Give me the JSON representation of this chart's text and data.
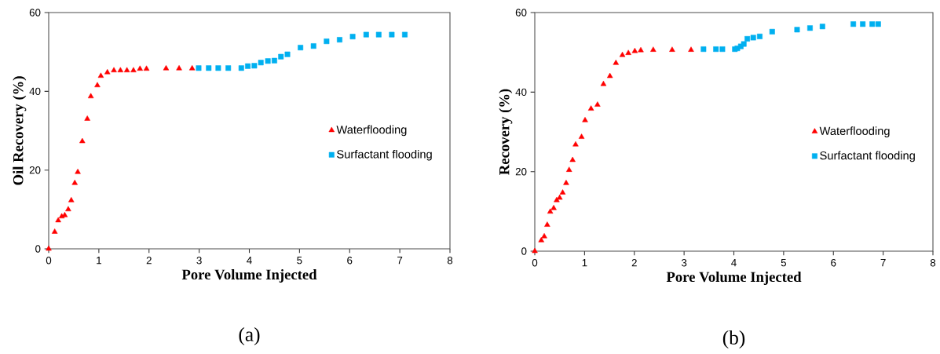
{
  "chart_data": [
    {
      "type": "scatter",
      "xlabel": "Pore Volume Injected",
      "ylabel": "Oil Recovery (%)",
      "xlim": [
        0,
        8
      ],
      "ylim": [
        0,
        60
      ],
      "xticks": [
        0,
        1,
        2,
        3,
        4,
        5,
        6,
        7,
        8
      ],
      "yticks": [
        0,
        20,
        40,
        60
      ],
      "legend": "right",
      "grid": false,
      "annotations": [
        "(a)"
      ],
      "series": [
        {
          "name": "Waterflooding",
          "color": "#ff0000",
          "marker": "triangle",
          "x": [
            0,
            0.12,
            0.19,
            0.26,
            0.32,
            0.39,
            0.45,
            0.52,
            0.58,
            0.67,
            0.77,
            0.84,
            0.97,
            1.04,
            1.17,
            1.3,
            1.43,
            1.56,
            1.69,
            1.82,
            1.95,
            2.34,
            2.6,
            2.86
          ],
          "values": [
            0,
            4.3,
            7.2,
            8.2,
            8.5,
            10,
            12.3,
            16.7,
            19.5,
            27.3,
            33,
            38.7,
            41.5,
            43.9,
            44.8,
            45.3,
            45.3,
            45.3,
            45.3,
            45.7,
            45.7,
            45.8,
            45.8,
            45.8
          ]
        },
        {
          "name": "Surfactant flooding",
          "color": "#00b0f0",
          "marker": "square",
          "x": [
            2.99,
            3.19,
            3.38,
            3.58,
            3.84,
            3.97,
            4.1,
            4.23,
            4.37,
            4.5,
            4.63,
            4.76,
            5.02,
            5.28,
            5.54,
            5.8,
            6.06,
            6.33,
            6.58,
            6.84,
            7.1
          ],
          "values": [
            45.9,
            45.9,
            45.9,
            45.9,
            45.9,
            46.4,
            46.5,
            47.3,
            47.7,
            47.8,
            48.8,
            49.4,
            51.1,
            51.5,
            52.7,
            53.1,
            53.9,
            54.4,
            54.4,
            54.4,
            54.4
          ]
        }
      ]
    },
    {
      "type": "scatter",
      "xlabel": "Pore Volume Injected",
      "ylabel": "Recovery (%)",
      "xlim": [
        0,
        8
      ],
      "ylim": [
        0,
        60
      ],
      "xticks": [
        0,
        1,
        2,
        3,
        4,
        5,
        6,
        7,
        8
      ],
      "yticks": [
        0,
        20,
        40,
        60
      ],
      "legend": "right",
      "grid": false,
      "annotations": [
        "(b)"
      ],
      "series": [
        {
          "name": "Waterflooding",
          "color": "#ff0000",
          "marker": "triangle",
          "x": [
            0,
            0.13,
            0.19,
            0.25,
            0.31,
            0.38,
            0.44,
            0.5,
            0.56,
            0.63,
            0.69,
            0.76,
            0.82,
            0.94,
            1.01,
            1.13,
            1.26,
            1.38,
            1.51,
            1.63,
            1.76,
            1.88,
            2.01,
            2.13,
            2.38,
            2.76,
            3.14
          ],
          "values": [
            0,
            2.7,
            3.7,
            6.6,
            9.9,
            10.8,
            12.8,
            13.4,
            14.7,
            17.1,
            20.4,
            22.9,
            26.8,
            28.7,
            32.9,
            35.8,
            36.8,
            42.0,
            44.0,
            47.3,
            49.3,
            49.8,
            50.3,
            50.5,
            50.6,
            50.6,
            50.6
          ]
        },
        {
          "name": "Surfactant flooding",
          "color": "#00b0f0",
          "marker": "square",
          "x": [
            3.39,
            3.64,
            3.77,
            4.02,
            4.07,
            4.14,
            4.2,
            4.27,
            4.39,
            4.52,
            4.77,
            5.27,
            5.53,
            5.78,
            6.4,
            6.59,
            6.78,
            6.9
          ],
          "values": [
            50.8,
            50.8,
            50.8,
            50.8,
            51.0,
            51.5,
            52.1,
            53.4,
            53.7,
            54.0,
            55.2,
            55.7,
            56.1,
            56.5,
            57.1,
            57.1,
            57.1,
            57.1
          ]
        }
      ]
    }
  ]
}
